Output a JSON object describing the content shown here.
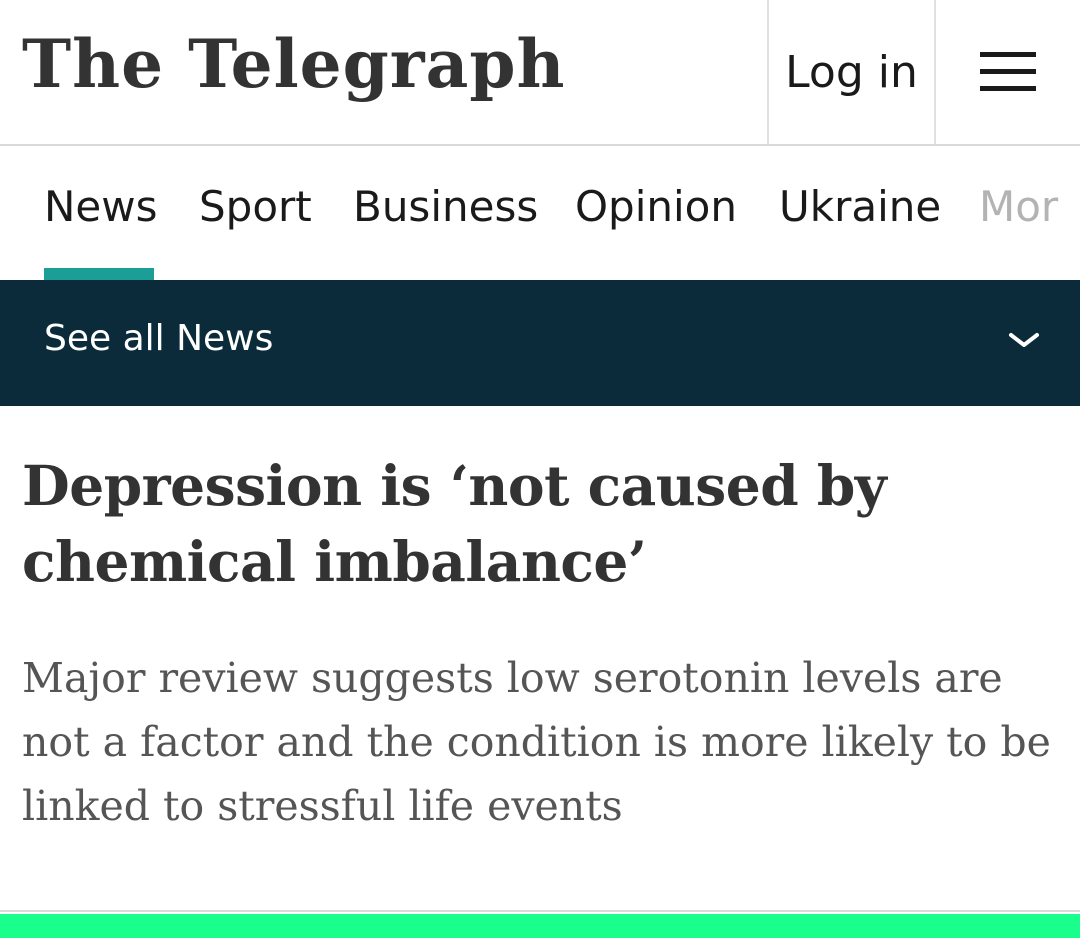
{
  "header": {
    "logo": "The Telegraph",
    "login_label": "Log in"
  },
  "nav": {
    "items": [
      "News",
      "Sport",
      "Business",
      "Opinion",
      "Ukraine",
      "Mor"
    ],
    "active": "News",
    "accent_color": "#1a9e96"
  },
  "subnav": {
    "label": "See all News",
    "background_color": "#0b2b3b"
  },
  "article": {
    "headline": "Depression is ‘not caused by chemical imbalance’",
    "standfirst": "Major review suggests low serotonin levels are not a factor and the condition is more likely to be linked to stressful life events"
  },
  "footer": {
    "bar_color": "#1aff8c"
  }
}
